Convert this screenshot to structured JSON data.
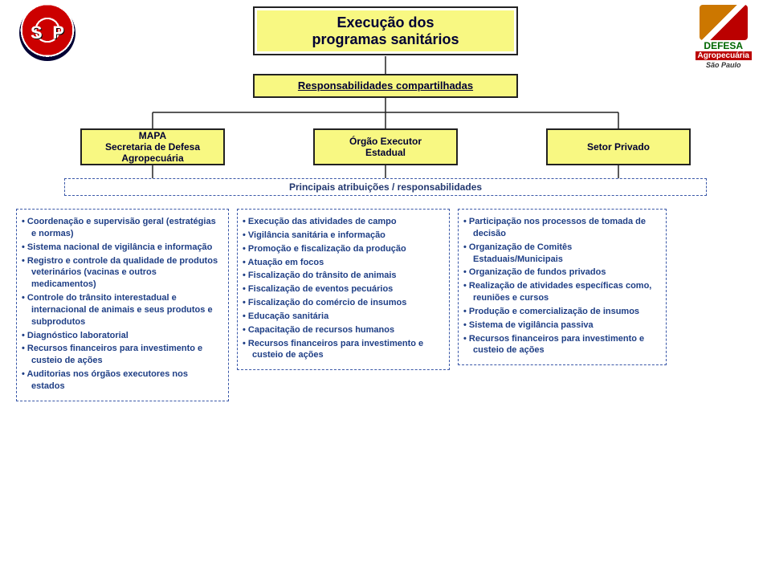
{
  "theme": {
    "box_bg": "#f8f882",
    "box_border": "#222222",
    "dash_border": "#3a58a8",
    "text_dark": "#000033",
    "text_blue": "#1e3e85"
  },
  "title": {
    "line1": "Execução dos",
    "line2": "programas sanitários"
  },
  "subtitle": "Responsabilidades compartilhadas",
  "actors": {
    "left": {
      "line1": "MAPA",
      "line2": "Secretaria de Defesa",
      "line3": "Agropecuária"
    },
    "center": {
      "line1": "Órgão Executor",
      "line2": "Estadual"
    },
    "right": {
      "line1": "Setor Privado"
    }
  },
  "middle_bar": "Principais atribuições / responsabilidades",
  "columns": {
    "left": [
      "Coordenação e supervisão geral (estratégias e normas)",
      "Sistema nacional de vigilância e informação",
      "Registro e controle da qualidade de produtos veterinários (vacinas e outros medicamentos)",
      "Controle do trânsito interestadual e internacional de animais e seus produtos e subprodutos",
      "Diagnóstico laboratorial",
      "Recursos financeiros para investimento e custeio de ações",
      "Auditorias nos órgãos executores nos estados"
    ],
    "center": [
      "Execução das atividades de campo",
      "Vigilância sanitária e informação",
      "Promoção e fiscalização da produção",
      "Atuação em focos",
      "Fiscalização do trânsito de animais",
      "Fiscalização de eventos pecuários",
      "Fiscalização do comércio de insumos",
      "Educação sanitária",
      "Capacitação de recursos humanos",
      "Recursos financeiros para investimento e custeio de ações"
    ],
    "right": [
      "Participação nos processos de tomada de decisão",
      "Organização de Comitês Estaduais/Municipais",
      "Organização de fundos privados",
      "Realização de atividades específicas como, reuniões e cursos",
      "Produção e comercialização de insumos",
      "Sistema de vigilância passiva",
      "Recursos financeiros para investimento e custeio de ações"
    ]
  },
  "logo_right": {
    "line1": "DEFESA",
    "line2": "Agropecuária",
    "line3": "São Paulo"
  }
}
